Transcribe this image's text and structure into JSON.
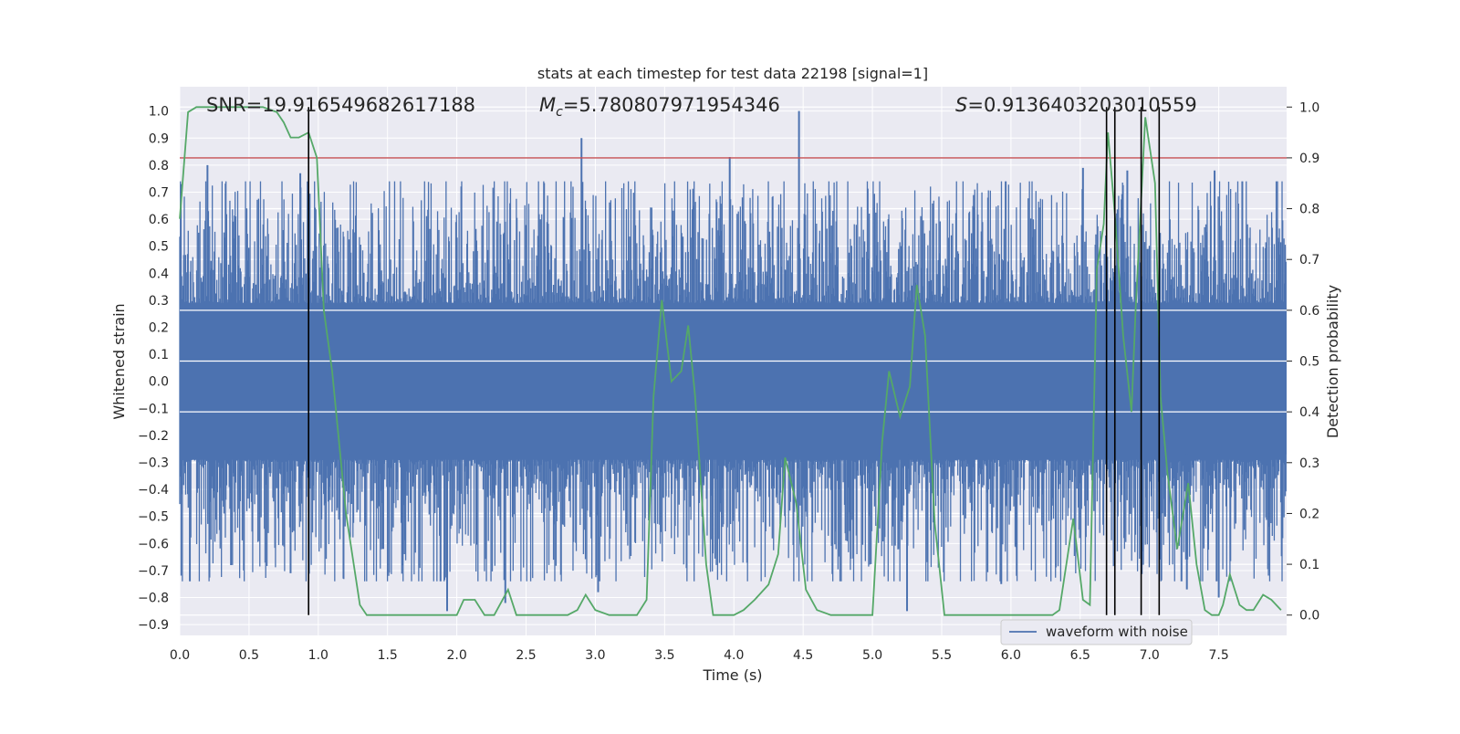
{
  "chart_data": {
    "type": "line",
    "title": "stats at each timestep for test data 22198 [signal=1]",
    "xlabel": "Time (s)",
    "ylabel_left": "Whitened strain",
    "ylabel_right": "Detection probability",
    "xlim": [
      0,
      7.99
    ],
    "ylim_left": [
      -0.94,
      1.09
    ],
    "ylim_right": [
      -0.04,
      1.04
    ],
    "x_ticks": [
      "0.0",
      "0.5",
      "1.0",
      "1.5",
      "2.0",
      "2.5",
      "3.0",
      "3.5",
      "4.0",
      "4.5",
      "5.0",
      "5.5",
      "6.0",
      "6.5",
      "7.0",
      "7.5"
    ],
    "y_ticks_left": [
      "−0.9",
      "−0.8",
      "−0.7",
      "−0.6",
      "−0.5",
      "−0.4",
      "−0.3",
      "−0.2",
      "−0.1",
      "0.0",
      "0.1",
      "0.2",
      "0.3",
      "0.4",
      "0.5",
      "0.6",
      "0.7",
      "0.8",
      "0.9",
      "1.0"
    ],
    "y_ticks_right": [
      "0.0",
      "0.1",
      "0.2",
      "0.3",
      "0.4",
      "0.5",
      "0.6",
      "0.7",
      "0.8",
      "0.9",
      "1.0"
    ],
    "grid": true,
    "legend": {
      "position": "bottom-right",
      "entries": [
        "waveform with noise"
      ]
    },
    "annotations": {
      "snr": "SNR=19.916549682617188",
      "mc_symbol": "M",
      "mc_sub": "c",
      "mc_value": "=5.780807971954346",
      "s_symbol": "S",
      "s_value": "=0.9136403203010559"
    },
    "colors": {
      "waveform": "#4c72b0",
      "probability": "#55a868",
      "threshold": "#c44e52",
      "markers": "#000000",
      "background": "#eaeaf2",
      "grid": "#ffffff"
    },
    "threshold_right": 0.9,
    "marker_times": [
      0.93,
      6.69,
      6.75,
      6.94,
      7.07
    ],
    "waveform_envelope": {
      "core_amplitude": 0.27,
      "typical_upper": 0.45,
      "typical_lower": -0.47,
      "max": 1.0,
      "min": -0.85,
      "peaks_upper": [
        [
          0.2,
          0.8
        ],
        [
          0.87,
          0.77
        ],
        [
          2.9,
          0.9
        ],
        [
          3.97,
          0.83
        ],
        [
          4.47,
          1.0
        ],
        [
          6.52,
          0.79
        ],
        [
          6.84,
          0.78
        ],
        [
          7.47,
          0.78
        ],
        [
          7.67,
          0.74
        ]
      ],
      "peaks_lower": [
        [
          0.37,
          -0.68
        ],
        [
          0.8,
          -0.71
        ],
        [
          1.93,
          -0.85
        ],
        [
          2.35,
          -0.82
        ],
        [
          3.02,
          -0.78
        ],
        [
          5.25,
          -0.85
        ],
        [
          5.93,
          -0.75
        ],
        [
          7.27,
          -0.77
        ],
        [
          7.5,
          -0.8
        ]
      ]
    },
    "series": [
      {
        "name": "waveform with noise",
        "axis": "left"
      },
      {
        "axis": "right",
        "x": [
          0.0,
          0.06,
          0.12,
          0.2,
          0.3,
          0.4,
          0.5,
          0.6,
          0.7,
          0.75,
          0.8,
          0.86,
          0.93,
          0.99,
          1.04,
          1.1,
          1.2,
          1.3,
          1.35,
          1.4,
          1.5,
          1.6,
          1.7,
          1.8,
          1.9,
          2.0,
          2.05,
          2.13,
          2.2,
          2.27,
          2.37,
          2.43,
          2.5,
          2.6,
          2.7,
          2.8,
          2.87,
          2.93,
          3.0,
          3.1,
          3.2,
          3.3,
          3.37,
          3.42,
          3.48,
          3.55,
          3.62,
          3.67,
          3.72,
          3.8,
          3.85,
          3.92,
          4.0,
          4.07,
          4.15,
          4.25,
          4.32,
          4.37,
          4.45,
          4.52,
          4.6,
          4.7,
          4.8,
          4.9,
          5.0,
          5.07,
          5.12,
          5.2,
          5.27,
          5.32,
          5.38,
          5.45,
          5.52,
          5.6,
          5.7,
          5.8,
          6.0,
          6.15,
          6.2,
          6.3,
          6.35,
          6.45,
          6.52,
          6.57,
          6.62,
          6.67,
          6.7,
          6.75,
          6.81,
          6.87,
          6.9,
          6.97,
          7.04,
          7.08,
          7.13,
          7.2,
          7.28,
          7.34,
          7.4,
          7.45,
          7.5,
          7.53,
          7.58,
          7.65,
          7.7,
          7.75,
          7.82,
          7.88,
          7.95
        ],
        "y": [
          0.78,
          0.99,
          1.0,
          1.0,
          1.0,
          1.0,
          1.0,
          1.0,
          0.99,
          0.97,
          0.94,
          0.94,
          0.95,
          0.9,
          0.6,
          0.48,
          0.2,
          0.02,
          0.0,
          0.0,
          0.0,
          0.0,
          0.0,
          0.0,
          0.0,
          0.0,
          0.03,
          0.03,
          0.0,
          0.0,
          0.05,
          0.0,
          0.0,
          0.0,
          0.0,
          0.0,
          0.01,
          0.04,
          0.01,
          0.0,
          0.0,
          0.0,
          0.03,
          0.43,
          0.62,
          0.46,
          0.48,
          0.57,
          0.43,
          0.1,
          0.0,
          0.0,
          0.0,
          0.01,
          0.03,
          0.06,
          0.12,
          0.31,
          0.22,
          0.05,
          0.01,
          0.0,
          0.0,
          0.0,
          0.0,
          0.34,
          0.48,
          0.39,
          0.45,
          0.65,
          0.55,
          0.18,
          0.0,
          0.0,
          0.0,
          0.0,
          0.0,
          0.0,
          0.0,
          0.0,
          0.01,
          0.19,
          0.03,
          0.02,
          0.68,
          0.77,
          0.95,
          0.79,
          0.55,
          0.4,
          0.6,
          0.98,
          0.85,
          0.43,
          0.28,
          0.13,
          0.26,
          0.1,
          0.01,
          0.0,
          0.0,
          0.02,
          0.08,
          0.02,
          0.01,
          0.01,
          0.04,
          0.03,
          0.01
        ]
      }
    ]
  }
}
